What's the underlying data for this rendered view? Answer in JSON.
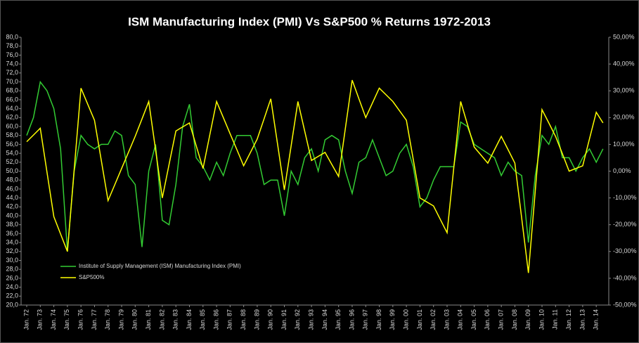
{
  "chart_data": {
    "type": "line",
    "title": "ISM Manufacturing Index (PMI) Vs S&P500 % Returns 1972-2013",
    "categories": [
      "Jan. 72",
      null,
      "Jan. 73",
      null,
      "Jan. 74",
      null,
      "Jan. 75",
      null,
      "Jan. 76",
      null,
      "Jan. 77",
      null,
      "Jan. 78",
      null,
      "Jan. 79",
      null,
      "Jan. 80",
      null,
      "Jan. 81",
      null,
      "Jan. 82",
      null,
      "Jan. 83",
      null,
      "Jan. 84",
      null,
      "Jan. 85",
      null,
      "Jan. 86",
      null,
      "Jan. 87",
      null,
      "Jan. 88",
      null,
      "Jan. 89",
      null,
      "Jan. 90",
      null,
      "Jan. 91",
      null,
      "Jan. 92",
      null,
      "Jan. 93",
      null,
      "Jan. 94",
      null,
      "Jan. 95",
      null,
      "Jan. 96",
      null,
      "Jan. 97",
      null,
      "Jan. 98",
      null,
      "Jan. 99",
      null,
      "Jan. 00",
      null,
      "Jan. 01",
      null,
      "Jan. 02",
      null,
      "Jan. 03",
      null,
      "Jan. 04",
      null,
      "Jan. 05",
      null,
      "Jan. 06",
      null,
      "Jan. 07",
      null,
      "Jan. 08",
      null,
      "Jan. 09",
      null,
      "Jan. 10",
      null,
      "Jan. 11",
      null,
      "Jan. 12",
      null,
      "Jan. 13",
      null,
      "Jan. 14",
      null
    ],
    "series": [
      {
        "name": "Institute of Supply Management (ISM) Manufacturing Index (PMI)",
        "color": "#33cc33",
        "axis": "y",
        "values": [
          58,
          62,
          70,
          68,
          64,
          55,
          32,
          50,
          58,
          56,
          55,
          56,
          56,
          59,
          58,
          49,
          47,
          33,
          50,
          56,
          39,
          38,
          47,
          60,
          65,
          53,
          51,
          48,
          52,
          49,
          54,
          58,
          58,
          58,
          54,
          47,
          48,
          48,
          40,
          50,
          47,
          53,
          55,
          50,
          57,
          58,
          57,
          50,
          45,
          52,
          53,
          57,
          53,
          49,
          50,
          54,
          56,
          51,
          42,
          44,
          48,
          51,
          51,
          51,
          61,
          60,
          56,
          55,
          54,
          53,
          49,
          52,
          50,
          49,
          34,
          49,
          58,
          56,
          60,
          53,
          53,
          50,
          53,
          55,
          52,
          55
        ]
      },
      {
        "name": "S&P500%",
        "color": "#ffff00",
        "axis": "y2",
        "values": [
          11,
          13.5,
          16,
          -0.5,
          -17,
          -23.5,
          -30,
          0.5,
          31,
          25,
          19,
          4,
          -11,
          -5,
          1,
          7,
          13,
          19.5,
          26,
          8,
          -10,
          2.5,
          15,
          16.5,
          18,
          9.5,
          1,
          13.5,
          26,
          20,
          14,
          8,
          2,
          7,
          12,
          19.5,
          27,
          10,
          -7,
          9.5,
          26,
          15,
          4,
          5.5,
          7,
          2.5,
          -2,
          16,
          34,
          27,
          20,
          25.5,
          31,
          28.5,
          26,
          22.5,
          19,
          4.5,
          -10,
          -11.5,
          -13,
          -18,
          -23,
          1.5,
          26,
          17.5,
          9,
          6,
          3,
          8,
          13,
          8,
          3,
          -17.5,
          -38,
          -7.5,
          23,
          18,
          13,
          6.5,
          0,
          1,
          2,
          12,
          22,
          18
        ]
      }
    ],
    "ylim": [
      20,
      80
    ],
    "yticks": [
      {
        "value": 20,
        "label": "20,0"
      },
      {
        "value": 22,
        "label": "22,0"
      },
      {
        "value": 24,
        "label": "24,0"
      },
      {
        "value": 26,
        "label": "26,0"
      },
      {
        "value": 28,
        "label": "28,0"
      },
      {
        "value": 30,
        "label": "30,0"
      },
      {
        "value": 32,
        "label": "32,0"
      },
      {
        "value": 34,
        "label": "34,0"
      },
      {
        "value": 36,
        "label": "36,0"
      },
      {
        "value": 38,
        "label": "38,0"
      },
      {
        "value": 40,
        "label": "40,0"
      },
      {
        "value": 42,
        "label": "42,0"
      },
      {
        "value": 44,
        "label": "44,0"
      },
      {
        "value": 46,
        "label": "46,0"
      },
      {
        "value": 48,
        "label": "48,0"
      },
      {
        "value": 50,
        "label": "50,0"
      },
      {
        "value": 52,
        "label": "52,0"
      },
      {
        "value": 54,
        "label": "54,0"
      },
      {
        "value": 56,
        "label": "56,0"
      },
      {
        "value": 58,
        "label": "58,0"
      },
      {
        "value": 60,
        "label": "60,0"
      },
      {
        "value": 62,
        "label": "62,0"
      },
      {
        "value": 64,
        "label": "64,0"
      },
      {
        "value": 66,
        "label": "66,0"
      },
      {
        "value": 68,
        "label": "68,0"
      },
      {
        "value": 70,
        "label": "70,0"
      },
      {
        "value": 72,
        "label": "72,0"
      },
      {
        "value": 74,
        "label": "74,0"
      },
      {
        "value": 76,
        "label": "76,0"
      },
      {
        "value": 78,
        "label": "78,0"
      },
      {
        "value": 80,
        "label": "80,0"
      }
    ],
    "y2lim": [
      -50,
      50
    ],
    "y2ticks": [
      {
        "value": -50,
        "label": "-50,00%"
      },
      {
        "value": -40,
        "label": "-40,00%"
      },
      {
        "value": -30,
        "label": "-30,00%"
      },
      {
        "value": -20,
        "label": "-20,00%"
      },
      {
        "value": -10,
        "label": "-10,00%"
      },
      {
        "value": 0,
        "label": "0,00%"
      },
      {
        "value": 10,
        "label": "10,00%"
      },
      {
        "value": 20,
        "label": "20,00%"
      },
      {
        "value": 30,
        "label": "30,00%"
      },
      {
        "value": 40,
        "label": "40,00%"
      },
      {
        "value": 50,
        "label": "50,00%"
      }
    ],
    "legend": "lower left"
  }
}
